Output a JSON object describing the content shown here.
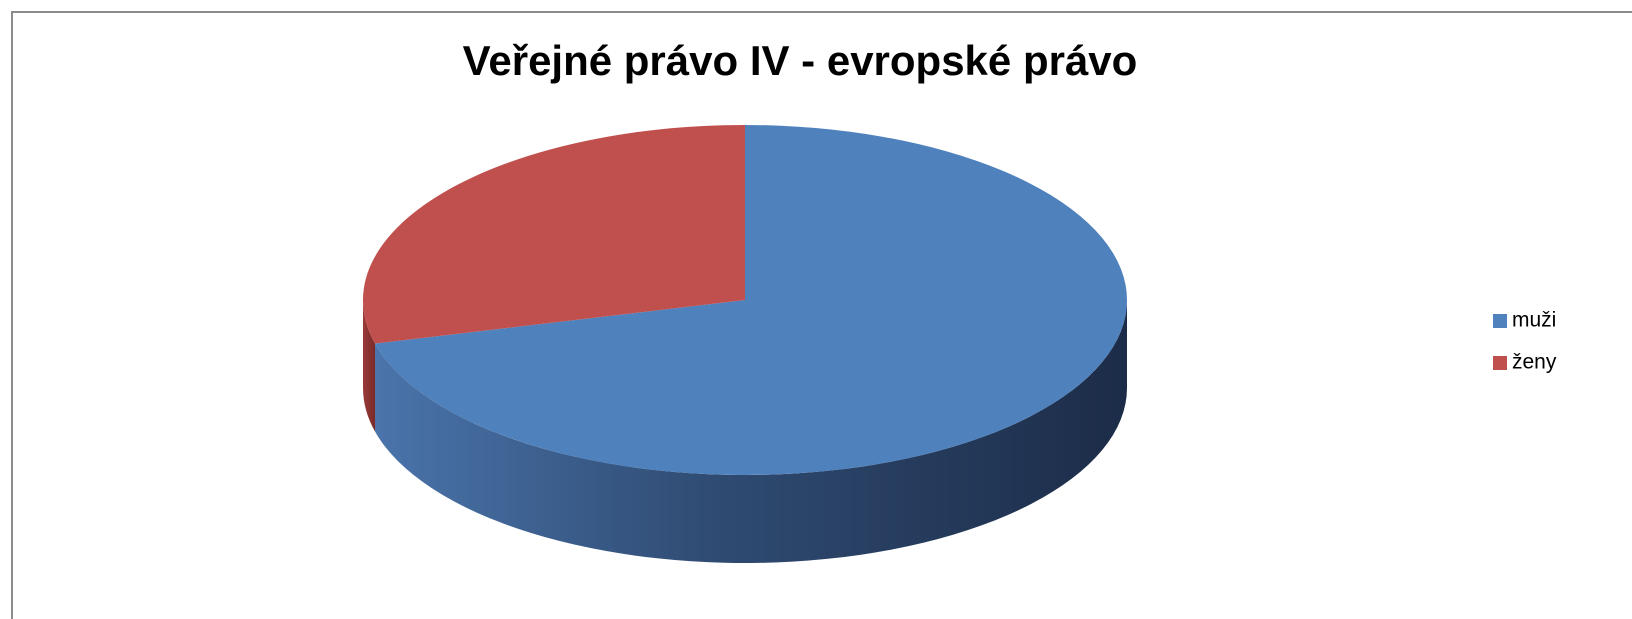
{
  "chart_data": {
    "type": "pie",
    "title": "Veřejné právo IV - evropské právo",
    "categories": [
      "muži",
      "ženy"
    ],
    "values": [
      71,
      29
    ],
    "colors": [
      "#4f81bd",
      "#c0504d"
    ],
    "legend": "right",
    "style": "3d"
  }
}
